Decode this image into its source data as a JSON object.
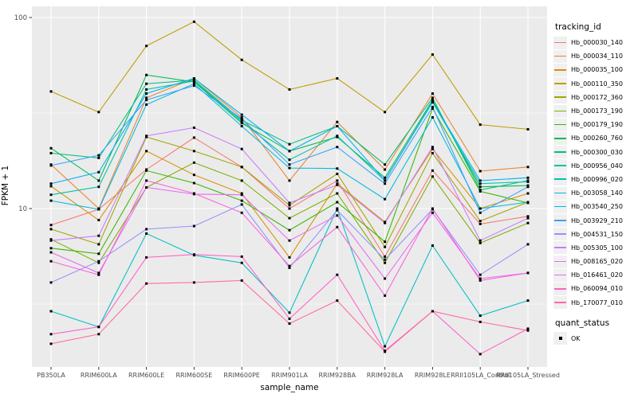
{
  "chart_data": {
    "type": "line",
    "title": "",
    "xlabel": "sample_name",
    "ylabel": "FPKM + 1",
    "y_scale": "log10",
    "ylim": [
      1.45,
      115
    ],
    "y_ticks": [
      {
        "label": "100",
        "value": 100
      },
      {
        "label": "10",
        "value": 10
      }
    ],
    "y_minor_gridlines": [
      31.623,
      3.1623
    ],
    "grid": true,
    "legend_position": "right",
    "point_marker": "filled-square",
    "legend_titles": {
      "tracking": "tracking_id",
      "quant": "quant_status"
    },
    "quant_status": {
      "entries": [
        {
          "label": "OK",
          "marker": "black-square"
        }
      ]
    },
    "colors": {
      "panel_bg": "#EBEBEB",
      "gridline": "#FFFFFF",
      "tick_text": "#4D4D4D",
      "tick_mark": "#333333",
      "point": "#000000",
      "legend_key_bg": "#F0F0F0"
    },
    "categories": [
      "PB350LA",
      "RRIM600LA",
      "RRIM600LE",
      "RRIM600SE",
      "RRIM600PE",
      "RRIM901LA",
      "RRIM928BA",
      "RRIM928LA",
      "RRIM928LE",
      "RRII105LA_Control",
      "RRII105LA_Stressed"
    ],
    "series": [
      {
        "name": "Hb_000030_140",
        "color": "#F8766D",
        "values": [
          8.2,
          9.9,
          16.0,
          23.5,
          16.5,
          10.0,
          14.0,
          5.6,
          15.8,
          8.3,
          9.1
        ]
      },
      {
        "name": "Hb_000034_110",
        "color": "#EA8331",
        "values": [
          17.0,
          10.0,
          38.0,
          48.0,
          30.0,
          14.0,
          28.4,
          16.0,
          40.0,
          15.7,
          16.5
        ]
      },
      {
        "name": "Hb_000035_100",
        "color": "#D89000",
        "values": [
          13.1,
          8.7,
          20.0,
          15.0,
          12.0,
          5.55,
          13.5,
          8.5,
          20.5,
          10.0,
          12.0
        ]
      },
      {
        "name": "Hb_000110_350",
        "color": "#C09B00",
        "values": [
          41.0,
          32.0,
          71.0,
          95.0,
          60.0,
          42.0,
          48.0,
          32.0,
          64.0,
          27.5,
          26.0
        ]
      },
      {
        "name": "Hb_000172_360",
        "color": "#A3A500",
        "values": [
          7.8,
          6.5,
          23.7,
          20.0,
          16.5,
          10.4,
          15.2,
          6.3,
          19.5,
          8.6,
          10.8
        ]
      },
      {
        "name": "Hb_000173_190",
        "color": "#7CAE00",
        "values": [
          6.9,
          5.2,
          12.9,
          17.4,
          14.0,
          8.9,
          12.0,
          5.2,
          14.7,
          6.6,
          8.4
        ]
      },
      {
        "name": "Hb_000179_190",
        "color": "#39B600",
        "values": [
          6.2,
          5.8,
          15.8,
          13.6,
          11.0,
          7.7,
          10.8,
          6.7,
          33.4,
          12.3,
          10.7
        ]
      },
      {
        "name": "Hb_000260_760",
        "color": "#00BB4E",
        "values": [
          20.7,
          14.0,
          50.0,
          46.0,
          28.0,
          20.0,
          23.7,
          14.5,
          37.0,
          13.0,
          13.2
        ]
      },
      {
        "name": "Hb_000300_030",
        "color": "#00BF7D",
        "values": [
          19.5,
          18.4,
          45.0,
          47.0,
          29.0,
          21.7,
          27.0,
          17.0,
          38.0,
          12.5,
          14.0
        ]
      },
      {
        "name": "Hb_000956_040",
        "color": "#00C1A7",
        "values": [
          11.8,
          13.0,
          42.0,
          46.5,
          28.5,
          18.0,
          24.0,
          14.0,
          36.0,
          13.5,
          13.8
        ]
      },
      {
        "name": "Hb_000996_020",
        "color": "#00BFC4",
        "values": [
          2.9,
          2.4,
          7.4,
          5.7,
          5.2,
          2.85,
          10.0,
          1.9,
          6.4,
          2.75,
          3.3
        ]
      },
      {
        "name": "Hb_003058_140",
        "color": "#00BADE",
        "values": [
          11.0,
          9.9,
          35.0,
          45.0,
          27.0,
          16.3,
          16.2,
          11.2,
          30.0,
          10.0,
          10.8
        ]
      },
      {
        "name": "Hb_003540_250",
        "color": "#00B0F6",
        "values": [
          13.5,
          15.5,
          40.0,
          48.0,
          31.0,
          20.0,
          27.0,
          14.0,
          36.3,
          14.0,
          14.5
        ]
      },
      {
        "name": "Hb_003929_210",
        "color": "#35A2FF",
        "values": [
          16.8,
          19.0,
          37.0,
          44.0,
          29.5,
          17.0,
          21.0,
          13.5,
          34.0,
          9.5,
          13.0
        ]
      },
      {
        "name": "Hb_004531_150",
        "color": "#9590FF",
        "values": [
          4.1,
          5.3,
          7.8,
          8.1,
          10.5,
          4.9,
          9.8,
          5.4,
          9.9,
          4.5,
          6.5
        ]
      },
      {
        "name": "Hb_005305_100",
        "color": "#C77CFF",
        "values": [
          6.8,
          7.2,
          24.0,
          26.5,
          20.5,
          10.7,
          13.3,
          8.4,
          21.0,
          6.8,
          8.9
        ]
      },
      {
        "name": "Hb_008165_020",
        "color": "#E76BF3",
        "values": [
          5.9,
          4.6,
          12.9,
          11.9,
          11.8,
          6.8,
          9.2,
          4.3,
          9.5,
          4.3,
          4.6
        ]
      },
      {
        "name": "Hb_016461_020",
        "color": "#FA62DB",
        "values": [
          5.3,
          4.5,
          14.0,
          12.0,
          9.5,
          5.0,
          8.0,
          3.5,
          10.0,
          4.2,
          4.6
        ]
      },
      {
        "name": "Hb_060094_010",
        "color": "#FF61C7",
        "values": [
          2.2,
          2.4,
          5.55,
          5.75,
          5.6,
          2.65,
          4.5,
          1.8,
          2.9,
          1.73,
          2.35
        ]
      },
      {
        "name": "Hb_170077_010",
        "color": "#FF689F",
        "values": [
          1.96,
          2.2,
          4.05,
          4.1,
          4.2,
          2.5,
          3.3,
          1.78,
          2.9,
          2.55,
          2.3
        ]
      }
    ]
  }
}
